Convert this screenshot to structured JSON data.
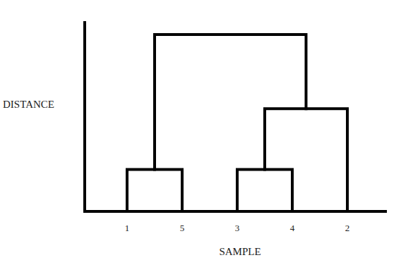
{
  "chart_data": {
    "type": "dendrogram",
    "x_label": "SAMPLE",
    "y_label": "DISTANCE",
    "categories": [
      "1",
      "5",
      "3",
      "4",
      "2"
    ],
    "merges": [
      {
        "a": 0,
        "b": 1,
        "height": 2.2
      },
      {
        "a": 2,
        "b": 3,
        "height": 2.2
      },
      {
        "a": 6,
        "b": 4,
        "height": 5.4
      },
      {
        "a": 5,
        "b": 7,
        "height": 9.3
      }
    ],
    "ylim": [
      0,
      10
    ],
    "tick_labels": "x",
    "color": "#000000"
  }
}
